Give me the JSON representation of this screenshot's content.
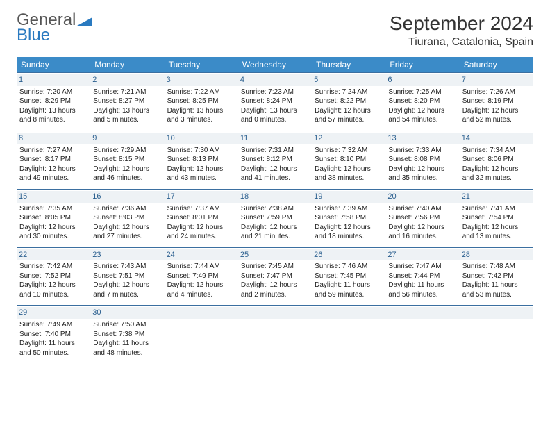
{
  "logo": {
    "word1": "General",
    "word2": "Blue"
  },
  "title": "September 2024",
  "location": "Tiurana, Catalonia, Spain",
  "colors": {
    "header_bg": "#3b8bc8",
    "header_text": "#ffffff",
    "row_border": "#3b6fa0",
    "daynum_bg": "#eef2f5",
    "daynum_color": "#2a5f8f",
    "logo_blue": "#2a7ac0"
  },
  "weekdays": [
    "Sunday",
    "Monday",
    "Tuesday",
    "Wednesday",
    "Thursday",
    "Friday",
    "Saturday"
  ],
  "weeks": [
    [
      {
        "n": "1",
        "sr": "Sunrise: 7:20 AM",
        "ss": "Sunset: 8:29 PM",
        "dl": "Daylight: 13 hours and 8 minutes."
      },
      {
        "n": "2",
        "sr": "Sunrise: 7:21 AM",
        "ss": "Sunset: 8:27 PM",
        "dl": "Daylight: 13 hours and 5 minutes."
      },
      {
        "n": "3",
        "sr": "Sunrise: 7:22 AM",
        "ss": "Sunset: 8:25 PM",
        "dl": "Daylight: 13 hours and 3 minutes."
      },
      {
        "n": "4",
        "sr": "Sunrise: 7:23 AM",
        "ss": "Sunset: 8:24 PM",
        "dl": "Daylight: 13 hours and 0 minutes."
      },
      {
        "n": "5",
        "sr": "Sunrise: 7:24 AM",
        "ss": "Sunset: 8:22 PM",
        "dl": "Daylight: 12 hours and 57 minutes."
      },
      {
        "n": "6",
        "sr": "Sunrise: 7:25 AM",
        "ss": "Sunset: 8:20 PM",
        "dl": "Daylight: 12 hours and 54 minutes."
      },
      {
        "n": "7",
        "sr": "Sunrise: 7:26 AM",
        "ss": "Sunset: 8:19 PM",
        "dl": "Daylight: 12 hours and 52 minutes."
      }
    ],
    [
      {
        "n": "8",
        "sr": "Sunrise: 7:27 AM",
        "ss": "Sunset: 8:17 PM",
        "dl": "Daylight: 12 hours and 49 minutes."
      },
      {
        "n": "9",
        "sr": "Sunrise: 7:29 AM",
        "ss": "Sunset: 8:15 PM",
        "dl": "Daylight: 12 hours and 46 minutes."
      },
      {
        "n": "10",
        "sr": "Sunrise: 7:30 AM",
        "ss": "Sunset: 8:13 PM",
        "dl": "Daylight: 12 hours and 43 minutes."
      },
      {
        "n": "11",
        "sr": "Sunrise: 7:31 AM",
        "ss": "Sunset: 8:12 PM",
        "dl": "Daylight: 12 hours and 41 minutes."
      },
      {
        "n": "12",
        "sr": "Sunrise: 7:32 AM",
        "ss": "Sunset: 8:10 PM",
        "dl": "Daylight: 12 hours and 38 minutes."
      },
      {
        "n": "13",
        "sr": "Sunrise: 7:33 AM",
        "ss": "Sunset: 8:08 PM",
        "dl": "Daylight: 12 hours and 35 minutes."
      },
      {
        "n": "14",
        "sr": "Sunrise: 7:34 AM",
        "ss": "Sunset: 8:06 PM",
        "dl": "Daylight: 12 hours and 32 minutes."
      }
    ],
    [
      {
        "n": "15",
        "sr": "Sunrise: 7:35 AM",
        "ss": "Sunset: 8:05 PM",
        "dl": "Daylight: 12 hours and 30 minutes."
      },
      {
        "n": "16",
        "sr": "Sunrise: 7:36 AM",
        "ss": "Sunset: 8:03 PM",
        "dl": "Daylight: 12 hours and 27 minutes."
      },
      {
        "n": "17",
        "sr": "Sunrise: 7:37 AM",
        "ss": "Sunset: 8:01 PM",
        "dl": "Daylight: 12 hours and 24 minutes."
      },
      {
        "n": "18",
        "sr": "Sunrise: 7:38 AM",
        "ss": "Sunset: 7:59 PM",
        "dl": "Daylight: 12 hours and 21 minutes."
      },
      {
        "n": "19",
        "sr": "Sunrise: 7:39 AM",
        "ss": "Sunset: 7:58 PM",
        "dl": "Daylight: 12 hours and 18 minutes."
      },
      {
        "n": "20",
        "sr": "Sunrise: 7:40 AM",
        "ss": "Sunset: 7:56 PM",
        "dl": "Daylight: 12 hours and 16 minutes."
      },
      {
        "n": "21",
        "sr": "Sunrise: 7:41 AM",
        "ss": "Sunset: 7:54 PM",
        "dl": "Daylight: 12 hours and 13 minutes."
      }
    ],
    [
      {
        "n": "22",
        "sr": "Sunrise: 7:42 AM",
        "ss": "Sunset: 7:52 PM",
        "dl": "Daylight: 12 hours and 10 minutes."
      },
      {
        "n": "23",
        "sr": "Sunrise: 7:43 AM",
        "ss": "Sunset: 7:51 PM",
        "dl": "Daylight: 12 hours and 7 minutes."
      },
      {
        "n": "24",
        "sr": "Sunrise: 7:44 AM",
        "ss": "Sunset: 7:49 PM",
        "dl": "Daylight: 12 hours and 4 minutes."
      },
      {
        "n": "25",
        "sr": "Sunrise: 7:45 AM",
        "ss": "Sunset: 7:47 PM",
        "dl": "Daylight: 12 hours and 2 minutes."
      },
      {
        "n": "26",
        "sr": "Sunrise: 7:46 AM",
        "ss": "Sunset: 7:45 PM",
        "dl": "Daylight: 11 hours and 59 minutes."
      },
      {
        "n": "27",
        "sr": "Sunrise: 7:47 AM",
        "ss": "Sunset: 7:44 PM",
        "dl": "Daylight: 11 hours and 56 minutes."
      },
      {
        "n": "28",
        "sr": "Sunrise: 7:48 AM",
        "ss": "Sunset: 7:42 PM",
        "dl": "Daylight: 11 hours and 53 minutes."
      }
    ],
    [
      {
        "n": "29",
        "sr": "Sunrise: 7:49 AM",
        "ss": "Sunset: 7:40 PM",
        "dl": "Daylight: 11 hours and 50 minutes."
      },
      {
        "n": "30",
        "sr": "Sunrise: 7:50 AM",
        "ss": "Sunset: 7:38 PM",
        "dl": "Daylight: 11 hours and 48 minutes."
      },
      {
        "n": "",
        "sr": "",
        "ss": "",
        "dl": ""
      },
      {
        "n": "",
        "sr": "",
        "ss": "",
        "dl": ""
      },
      {
        "n": "",
        "sr": "",
        "ss": "",
        "dl": ""
      },
      {
        "n": "",
        "sr": "",
        "ss": "",
        "dl": ""
      },
      {
        "n": "",
        "sr": "",
        "ss": "",
        "dl": ""
      }
    ]
  ]
}
